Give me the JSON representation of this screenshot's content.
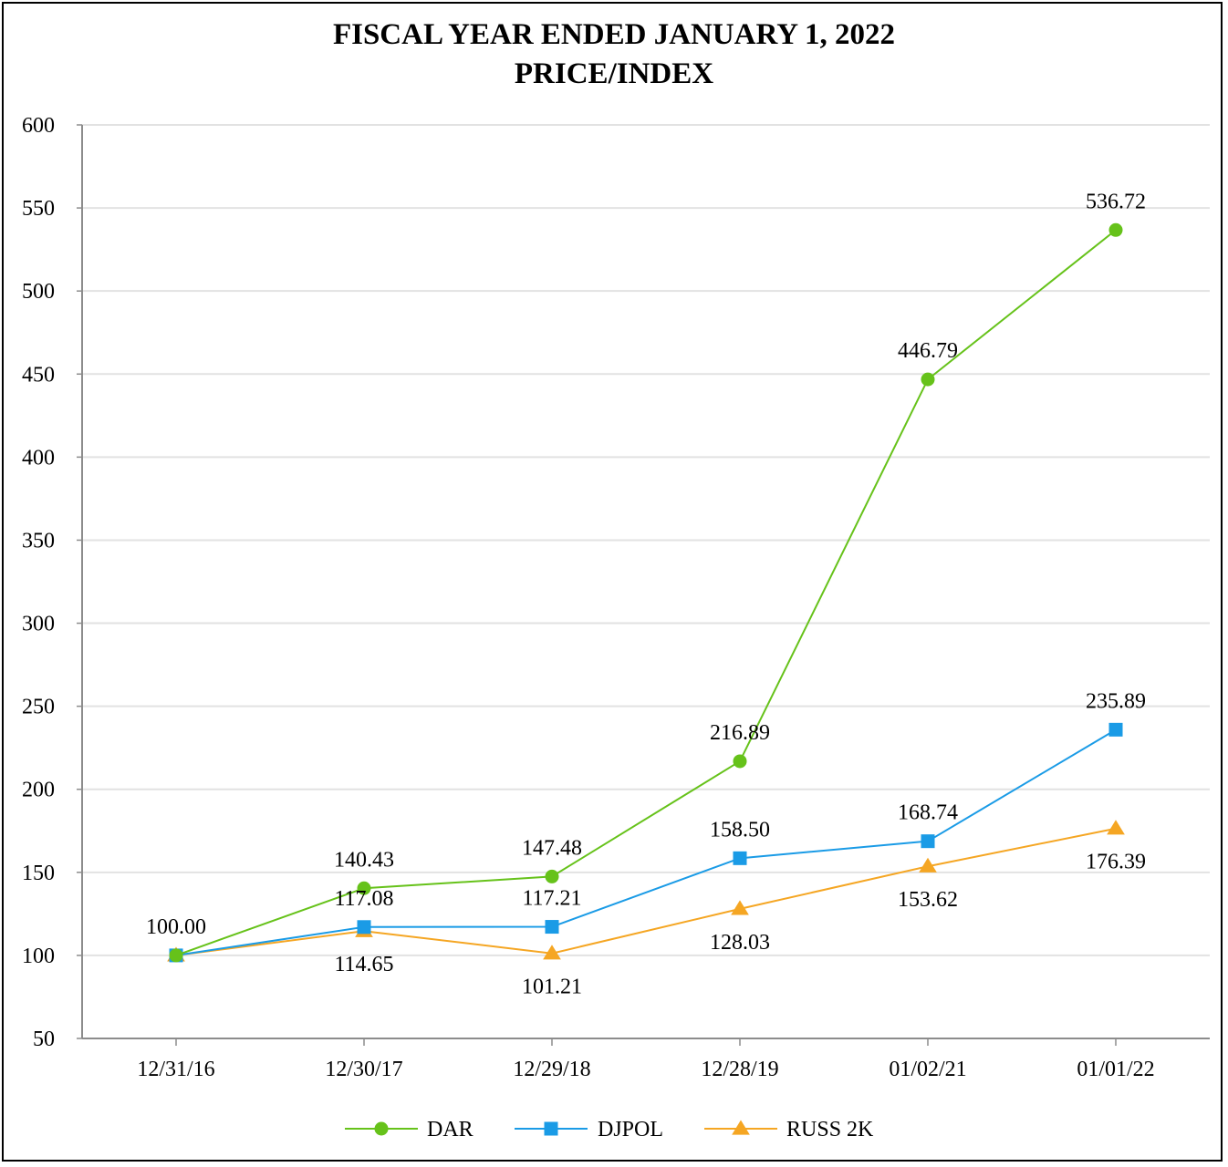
{
  "chart_data": {
    "type": "line",
    "title": "FISCAL YEAR ENDED JANUARY 1, 2022",
    "subtitle": "PRICE/INDEX",
    "categories": [
      "12/31/16",
      "12/30/17",
      "12/29/18",
      "12/28/19",
      "01/02/21",
      "01/01/22"
    ],
    "ylim": [
      50,
      600
    ],
    "yticks": [
      "50",
      "100",
      "150",
      "200",
      "250",
      "300",
      "350",
      "400",
      "450",
      "500",
      "550",
      "600"
    ],
    "ytick_values": [
      50,
      100,
      150,
      200,
      250,
      300,
      350,
      400,
      450,
      500,
      550,
      600
    ],
    "grid": true,
    "legend_position": "bottom",
    "series": [
      {
        "name": "DAR",
        "marker": "circle",
        "color": "#66c21a",
        "values": [
          100.0,
          140.43,
          147.48,
          216.89,
          446.79,
          536.72
        ],
        "labels": [
          "100.00",
          "140.43",
          "147.48",
          "216.89",
          "446.79",
          "536.72"
        ],
        "label_side": [
          "above",
          "above",
          "above",
          "above",
          "above",
          "above"
        ]
      },
      {
        "name": "DJPOL",
        "marker": "square",
        "color": "#1a9be6",
        "values": [
          100.0,
          117.08,
          117.21,
          158.5,
          168.74,
          235.89
        ],
        "labels": [
          null,
          "117.08",
          "117.21",
          "158.50",
          "168.74",
          "235.89"
        ],
        "label_side": [
          "above",
          "above",
          "above",
          "above",
          "above",
          "above"
        ]
      },
      {
        "name": "RUSS 2K",
        "marker": "triangle",
        "color": "#f5a623",
        "values": [
          100.0,
          114.65,
          101.21,
          128.03,
          153.62,
          176.39
        ],
        "labels": [
          null,
          "114.65",
          "101.21",
          "128.03",
          "153.62",
          "176.39"
        ],
        "label_side": [
          "below",
          "below",
          "below",
          "below",
          "below",
          "below"
        ]
      }
    ]
  }
}
